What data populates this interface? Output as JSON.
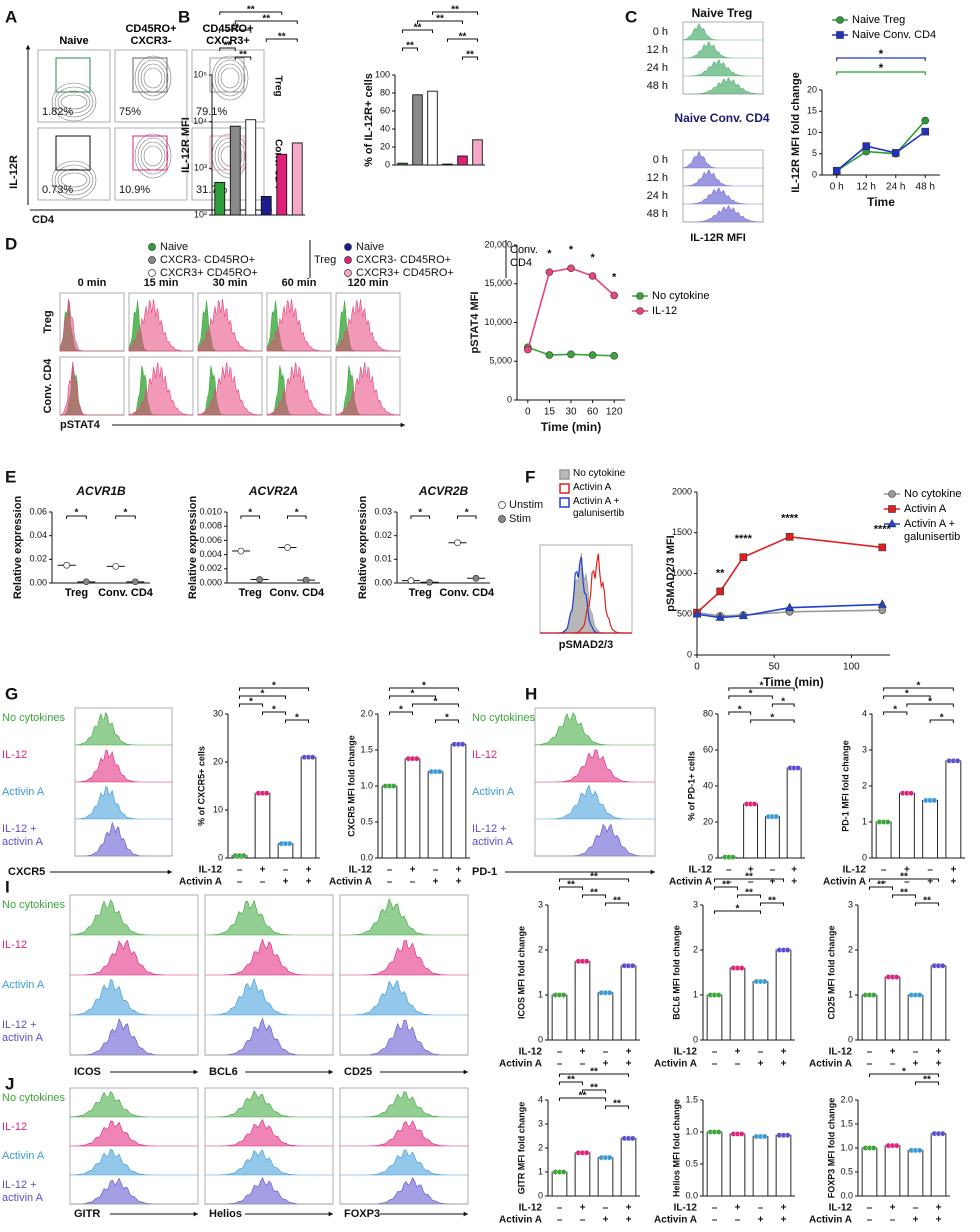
{
  "figure": {
    "panel_labels": [
      "A",
      "B",
      "C",
      "D",
      "E",
      "F",
      "G",
      "H",
      "I",
      "J"
    ],
    "A": {
      "columns": [
        "Naive",
        "CD45RO+ CXCR3-",
        "CD45RO+ CXCR3+"
      ],
      "rows": [
        "Treg",
        "Conv. CD4"
      ],
      "y_axis": "IL-12R",
      "x_axis": "CD4",
      "gates": [
        [
          "1.82%",
          "75%",
          "79.1%"
        ],
        [
          "0.73%",
          "10.9%",
          "31.7%"
        ]
      ]
    },
    "B": {
      "group_left": "Treg",
      "group_right": "Conv. CD4"
    },
    "C": {
      "hist_titles": [
        "Naive Treg",
        "Naive Conv. CD4"
      ],
      "x_axis": "IL-12R MFI"
    },
    "D": {
      "times": [
        "0 min",
        "15 min",
        "30 min",
        "60 min",
        "120 min"
      ],
      "rows": [
        "Treg",
        "Conv. CD4"
      ],
      "x_axis": "pSTAT4"
    },
    "F": {
      "x_axis": "pSMAD2/3"
    },
    "conditions": [
      "No cytokines",
      "IL-12",
      "Activin A",
      "IL-12 + activin A"
    ],
    "condition_colors": [
      "#3aa63a",
      "#e0217a",
      "#3a9ad9",
      "#5a4fcf"
    ],
    "G": {
      "x_axis": [
        "CXCR5"
      ]
    },
    "H": {
      "x_axis": [
        "PD-1"
      ]
    },
    "I": {
      "x_axis": [
        "ICOS",
        "BCL6",
        "CD25"
      ]
    },
    "J": {
      "x_axis": [
        "GITR",
        "Helios",
        "FOXP3"
      ]
    },
    "signs": {
      "il12": "IL-12",
      "activin": "Activin A",
      "minus": "–",
      "plus": "+",
      "il12_on": [
        false,
        true,
        false,
        true
      ],
      "activin_on": [
        false,
        false,
        true,
        true
      ]
    }
  },
  "chart_data": [
    {
      "type": "bar",
      "y_label": "IL-12R MFI",
      "log_scale": true,
      "categories": [
        "Naive",
        "CXCR3- CD45RO+",
        "CXCR3+ CD45RO+",
        "Naive",
        "CXCR3- CD45RO+",
        "CXCR3+ CD45RO+"
      ],
      "colors": [
        "#2e9e3a",
        "#8a8a8a",
        "#ffffff",
        "#1c1c8c",
        "#e0217a",
        "#f5a8c8"
      ],
      "values": [
        500,
        8000,
        11000,
        250,
        2000,
        3500
      ],
      "ylim": [
        100,
        100000
      ],
      "yticks": [
        {
          "value": 100,
          "label": "10²"
        },
        {
          "value": 1000,
          "label": "10³"
        },
        {
          "value": 10000,
          "label": "10⁴"
        },
        {
          "value": 100000,
          "label": "10⁵"
        }
      ],
      "significance": [
        {
          "pair": [
            0,
            4
          ],
          "label": "**"
        },
        {
          "pair": [
            1,
            5
          ],
          "label": "**"
        },
        {
          "pair": [
            0,
            2
          ],
          "label": "**"
        },
        {
          "pair": [
            3,
            5
          ],
          "label": "**"
        },
        {
          "pair": [
            0,
            1
          ],
          "label": "**"
        },
        {
          "pair": [
            1,
            2
          ],
          "label": "**"
        }
      ]
    },
    {
      "type": "bar",
      "y_label": "% of IL-12R+ cells",
      "colors": [
        "#2e9e3a",
        "#8a8a8a",
        "#ffffff",
        "#1c1c8c",
        "#e0217a",
        "#f5a8c8"
      ],
      "values": [
        2,
        78,
        82,
        1,
        10,
        28
      ],
      "ylim": [
        0,
        100
      ],
      "yticks": [
        0,
        20,
        40,
        60,
        80,
        100
      ],
      "significance": [
        {
          "pair": [
            2,
            5
          ],
          "label": "**"
        },
        {
          "pair": [
            1,
            4
          ],
          "label": "**"
        },
        {
          "pair": [
            0,
            2
          ],
          "label": "**"
        },
        {
          "pair": [
            3,
            5
          ],
          "label": "**"
        },
        {
          "pair": [
            0,
            1
          ],
          "label": "**"
        },
        {
          "pair": [
            4,
            5
          ],
          "label": "**"
        }
      ]
    },
    {
      "type": "line",
      "y_label": "IL-12R MFI fold change",
      "x_label": "Time",
      "categories": [
        "0 h",
        "12 h",
        "24 h",
        "48 h"
      ],
      "series": [
        {
          "name": "Naive Treg",
          "color": "#2a9d3a",
          "marker": "circle",
          "values": [
            1,
            5.5,
            5,
            12.8
          ]
        },
        {
          "name": "Naive Conv. CD4",
          "color": "#2030c0",
          "marker": "square",
          "values": [
            1,
            6.8,
            5.2,
            10.2
          ]
        }
      ],
      "ylim": [
        0,
        20
      ],
      "yticks": [
        0,
        5,
        10,
        15,
        20
      ],
      "annotations": [
        {
          "label": "*",
          "color": "#2030c0"
        },
        {
          "label": "*",
          "color": "#2a9d3a"
        }
      ]
    },
    {
      "type": "line",
      "y_label": "pSTAT4 MFI",
      "x_label": "Time (min)",
      "categories": [
        "0",
        "15",
        "30",
        "60",
        "120"
      ],
      "series": [
        {
          "name": "No cytokine",
          "color": "#3aa63a",
          "marker": "circle",
          "values": [
            6800,
            5800,
            5900,
            5800,
            5700
          ]
        },
        {
          "name": "IL-12",
          "color": "#e8457e",
          "marker": "circle",
          "values": [
            6500,
            16500,
            17000,
            16000,
            13500
          ]
        }
      ],
      "ylim": [
        0,
        20000
      ],
      "yticks": [
        0,
        {
          "value": 5000,
          "label": "5,000"
        },
        {
          "value": 10000,
          "label": "10,000"
        },
        {
          "value": 15000,
          "label": "15,000"
        },
        {
          "value": 20000,
          "label": "20,000"
        }
      ],
      "annotations": [
        null,
        "*",
        "*",
        "*",
        "*"
      ]
    },
    {
      "type": "strip",
      "title": "ACVR1B",
      "y_label": "Relative expression",
      "categories": [
        "Treg",
        "Conv. CD4"
      ],
      "series": [
        {
          "name": "Unstim",
          "color": "#ffffff",
          "values": [
            0.015,
            0.014
          ]
        },
        {
          "name": "Stim",
          "color": "#888888",
          "values": [
            0.001,
            0.001
          ]
        }
      ],
      "ylim": [
        0,
        0.06
      ],
      "yticks": [
        {
          "value": 0,
          "label": "0.00"
        },
        0.02,
        0.04,
        0.06
      ],
      "significance": [
        "*",
        "*"
      ]
    },
    {
      "type": "strip",
      "title": "ACVR2A",
      "y_label": "Relative expression",
      "categories": [
        "Treg",
        "Conv. CD4"
      ],
      "series": [
        {
          "name": "Unstim",
          "color": "#ffffff",
          "values": [
            0.0045,
            0.005
          ]
        },
        {
          "name": "Stim",
          "color": "#888888",
          "values": [
            0.0005,
            0.0004
          ]
        }
      ],
      "ylim": [
        0,
        0.01
      ],
      "yticks": [
        {
          "value": 0,
          "label": "0.000"
        },
        0.002,
        0.004,
        0.006,
        0.008,
        {
          "value": 0.01,
          "label": "0.010"
        }
      ],
      "significance": [
        "*",
        "*"
      ]
    },
    {
      "type": "strip",
      "title": "ACVR2B",
      "y_label": "Relative expression",
      "categories": [
        "Treg",
        "Conv. CD4"
      ],
      "series": [
        {
          "name": "Unstim",
          "color": "#ffffff",
          "values": [
            0.001,
            0.017
          ]
        },
        {
          "name": "Stim",
          "color": "#888888",
          "values": [
            0.0003,
            0.002
          ]
        }
      ],
      "ylim": [
        0,
        0.03
      ],
      "yticks": [
        {
          "value": 0,
          "label": "0.00"
        },
        0.01,
        0.02,
        0.03
      ],
      "significance": [
        "*",
        "*"
      ],
      "legend": true
    },
    {
      "type": "line",
      "y_label": "pSMAD2/3 MFI",
      "x_label": "Time (min)",
      "x": [
        0,
        15,
        30,
        60,
        120
      ],
      "xlim": [
        0,
        125
      ],
      "xticks": [
        0,
        50,
        100
      ],
      "series": [
        {
          "name": "No cytokine",
          "color": "#999999",
          "marker": "circle",
          "values": [
            520,
            480,
            490,
            530,
            550
          ]
        },
        {
          "name": "Activin A",
          "color": "#e02020",
          "marker": "square",
          "values": [
            520,
            780,
            1200,
            1450,
            1320
          ]
        },
        {
          "name": "Activin A + galunisertib",
          "color": "#2040d0",
          "marker": "triangle",
          "values": [
            500,
            460,
            480,
            580,
            620
          ]
        }
      ],
      "ylim": [
        0,
        2000
      ],
      "yticks": [
        0,
        500,
        1000,
        1500,
        2000
      ],
      "annotations": [
        null,
        "**",
        "****",
        "****",
        "****"
      ]
    },
    {
      "type": "bar",
      "y_label": "% of CXCR5+ cells",
      "signs": true,
      "values": [
        0.5,
        13.5,
        3,
        21
      ],
      "ylim": [
        0,
        30
      ],
      "yticks": [
        0,
        10,
        20,
        30
      ],
      "significance": [
        {
          "pair": [
            0,
            3
          ],
          "label": "*"
        },
        {
          "pair": [
            0,
            2
          ],
          "label": "*"
        },
        {
          "pair": [
            0,
            1
          ],
          "label": "*"
        },
        {
          "pair": [
            1,
            2
          ],
          "label": "*"
        },
        {
          "pair": [
            2,
            3
          ],
          "label": "*"
        }
      ]
    },
    {
      "type": "bar",
      "y_label": "CXCR5 MFI fold change",
      "signs": true,
      "values": [
        1,
        1.38,
        1.2,
        1.58
      ],
      "ylim": [
        0,
        2
      ],
      "yticks": [
        {
          "value": 0,
          "label": "0.0"
        },
        0.5,
        {
          "value": 1,
          "label": "1.0"
        },
        1.5,
        {
          "value": 2,
          "label": "2.0"
        }
      ],
      "significance": [
        {
          "pair": [
            0,
            3
          ],
          "label": "*"
        },
        {
          "pair": [
            0,
            2
          ],
          "label": "*"
        },
        {
          "pair": [
            1,
            3
          ],
          "label": "*"
        },
        {
          "pair": [
            0,
            1
          ],
          "label": "*"
        },
        {
          "pair": [
            2,
            3
          ],
          "label": "*"
        }
      ]
    },
    {
      "type": "bar",
      "y_label": "% of PD-1+ cells",
      "signs": true,
      "values": [
        0.5,
        30,
        23,
        50
      ],
      "ylim": [
        0,
        80
      ],
      "yticks": [
        0,
        20,
        40,
        60,
        80
      ],
      "significance": [
        {
          "pair": [
            0,
            3
          ],
          "label": "*"
        },
        {
          "pair": [
            0,
            2
          ],
          "label": "*"
        },
        {
          "pair": [
            2,
            3
          ],
          "label": "*"
        },
        {
          "pair": [
            0,
            1
          ],
          "label": "*"
        },
        {
          "pair": [
            1,
            3
          ],
          "label": "*"
        }
      ]
    },
    {
      "type": "bar",
      "y_label": "PD-1 MFI fold change",
      "signs": true,
      "values": [
        1,
        1.8,
        1.6,
        2.7
      ],
      "ylim": [
        0,
        4
      ],
      "yticks": [
        0,
        1,
        2,
        3,
        4
      ],
      "significance": [
        {
          "pair": [
            0,
            3
          ],
          "label": "*"
        },
        {
          "pair": [
            0,
            2
          ],
          "label": "*"
        },
        {
          "pair": [
            1,
            3
          ],
          "label": "*"
        },
        {
          "pair": [
            0,
            1
          ],
          "label": "*"
        },
        {
          "pair": [
            2,
            3
          ],
          "label": "*"
        }
      ]
    },
    {
      "type": "bar",
      "y_label": "ICOS MFI fold change",
      "signs": true,
      "values": [
        1,
        1.75,
        1.05,
        1.65
      ],
      "ylim": [
        0,
        3
      ],
      "yticks": [
        0,
        1,
        2,
        3
      ],
      "significance": [
        {
          "pair": [
            0,
            3
          ],
          "label": "**"
        },
        {
          "pair": [
            0,
            1
          ],
          "label": "**"
        },
        {
          "pair": [
            1,
            2
          ],
          "label": "**"
        },
        {
          "pair": [
            2,
            3
          ],
          "label": "**"
        }
      ]
    },
    {
      "type": "bar",
      "y_label": "BCL6 MFI fold change",
      "signs": true,
      "values": [
        1,
        1.6,
        1.3,
        2.0
      ],
      "ylim": [
        0,
        3
      ],
      "yticks": [
        0,
        1,
        2,
        3
      ],
      "significance": [
        {
          "pair": [
            0,
            3
          ],
          "label": "**"
        },
        {
          "pair": [
            0,
            1
          ],
          "label": "**"
        },
        {
          "pair": [
            1,
            2
          ],
          "label": "**"
        },
        {
          "pair": [
            2,
            3
          ],
          "label": "**"
        },
        {
          "pair": [
            0,
            2
          ],
          "label": "*"
        }
      ]
    },
    {
      "type": "bar",
      "y_label": "CD25 MFI fold change",
      "signs": true,
      "values": [
        1,
        1.4,
        1.0,
        1.65
      ],
      "ylim": [
        0,
        3
      ],
      "yticks": [
        0,
        1,
        2,
        3
      ],
      "significance": [
        {
          "pair": [
            0,
            3
          ],
          "label": "**"
        },
        {
          "pair": [
            0,
            1
          ],
          "label": "**"
        },
        {
          "pair": [
            1,
            2
          ],
          "label": "**"
        },
        {
          "pair": [
            2,
            3
          ],
          "label": "**"
        }
      ]
    },
    {
      "type": "bar",
      "y_label": "GITR MFI fold change",
      "signs": true,
      "values": [
        1,
        1.8,
        1.6,
        2.4
      ],
      "ylim": [
        0,
        4
      ],
      "yticks": [
        0,
        1,
        2,
        3,
        4
      ],
      "significance": [
        {
          "pair": [
            0,
            3
          ],
          "label": "**"
        },
        {
          "pair": [
            0,
            1
          ],
          "label": "**"
        },
        {
          "pair": [
            1,
            2
          ],
          "label": "**"
        },
        {
          "pair": [
            0,
            2
          ],
          "label": "**"
        },
        {
          "pair": [
            2,
            3
          ],
          "label": "**"
        }
      ]
    },
    {
      "type": "bar",
      "y_label": "Helios MFI fold change",
      "signs": true,
      "values": [
        1,
        0.97,
        0.93,
        0.95
      ],
      "ylim": [
        0,
        1.5
      ],
      "yticks": [
        {
          "value": 0,
          "label": "0.0"
        },
        0.5,
        {
          "value": 1,
          "label": "1.0"
        },
        1.5
      ],
      "significance": []
    },
    {
      "type": "bar",
      "y_label": "FOXP3 MFI fold change",
      "signs": true,
      "values": [
        1,
        1.05,
        0.95,
        1.3
      ],
      "ylim": [
        0,
        2
      ],
      "yticks": [
        {
          "value": 0,
          "label": "0.0"
        },
        0.5,
        {
          "value": 1,
          "label": "1.0"
        },
        1.5,
        {
          "value": 2,
          "label": "2.0"
        }
      ],
      "significance": [
        {
          "pair": [
            0,
            3
          ],
          "label": "*"
        },
        {
          "pair": [
            2,
            3
          ],
          "label": "**"
        }
      ]
    }
  ]
}
